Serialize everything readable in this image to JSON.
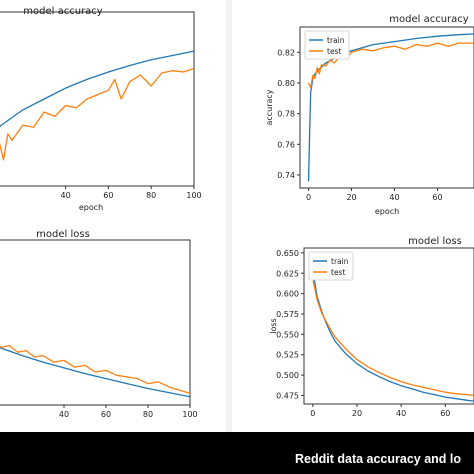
{
  "colors": {
    "train": "#1f77b4",
    "test": "#ff7f0e",
    "background": "#ffffff",
    "caption_bar": "#000000",
    "caption_text": "#ffffff"
  },
  "caption": "Reddit data accuracy and lo",
  "chart_data": [
    {
      "id": "left-accuracy",
      "type": "line",
      "title": "model accuracy",
      "xlabel": "epoch",
      "ylabel": "",
      "x_ticks": [
        40,
        60,
        80,
        100
      ],
      "y_ticks": [],
      "xlim": [
        0,
        100
      ],
      "ylim": [
        0.6,
        1.0
      ],
      "grid": false,
      "legend": null,
      "series": [
        {
          "key": "train",
          "color": "#1f77b4",
          "x": [
            0,
            5,
            10,
            20,
            30,
            40,
            50,
            60,
            70,
            80,
            90,
            100
          ],
          "values": [
            0.69,
            0.715,
            0.74,
            0.775,
            0.8,
            0.825,
            0.845,
            0.862,
            0.877,
            0.89,
            0.9,
            0.91
          ]
        },
        {
          "key": "test",
          "color": "#ff7f0e",
          "x": [
            0,
            3,
            5,
            7,
            9,
            11,
            13,
            15,
            20,
            25,
            30,
            35,
            40,
            45,
            50,
            55,
            60,
            63,
            66,
            70,
            75,
            80,
            85,
            90,
            95,
            100
          ],
          "values": [
            0.655,
            0.68,
            0.675,
            0.62,
            0.7,
            0.66,
            0.72,
            0.705,
            0.74,
            0.735,
            0.77,
            0.76,
            0.785,
            0.78,
            0.8,
            0.81,
            0.82,
            0.845,
            0.8,
            0.84,
            0.855,
            0.83,
            0.86,
            0.865,
            0.862,
            0.87
          ]
        }
      ]
    },
    {
      "id": "right-accuracy",
      "type": "line",
      "title": "model accuracy",
      "xlabel": "epoch",
      "ylabel": "accuracy",
      "x_ticks": [
        0,
        20,
        40,
        60
      ],
      "y_ticks": [
        0.74,
        0.76,
        0.78,
        0.8,
        0.82
      ],
      "xlim": [
        -4,
        77
      ],
      "ylim": [
        0.7315,
        0.8365
      ],
      "grid": false,
      "legend": "top-left",
      "series": [
        {
          "key": "train",
          "name": "train",
          "color": "#1f77b4",
          "x": [
            0,
            0.5,
            1,
            2,
            3,
            5,
            8,
            12,
            16,
            20,
            30,
            40,
            50,
            60,
            70,
            77
          ],
          "values": [
            0.736,
            0.77,
            0.794,
            0.803,
            0.806,
            0.809,
            0.813,
            0.816,
            0.819,
            0.821,
            0.825,
            0.827,
            0.829,
            0.8305,
            0.8315,
            0.832
          ]
        },
        {
          "key": "test",
          "name": "test",
          "color": "#ff7f0e",
          "x": [
            0,
            1,
            2,
            3,
            4,
            5,
            6,
            8,
            10,
            12,
            15,
            18,
            20,
            25,
            30,
            35,
            40,
            45,
            50,
            55,
            60,
            65,
            70,
            77
          ],
          "values": [
            0.8,
            0.797,
            0.805,
            0.803,
            0.81,
            0.806,
            0.812,
            0.811,
            0.815,
            0.813,
            0.818,
            0.817,
            0.82,
            0.822,
            0.821,
            0.823,
            0.824,
            0.822,
            0.825,
            0.824,
            0.826,
            0.824,
            0.826,
            0.826
          ]
        }
      ]
    },
    {
      "id": "left-loss",
      "type": "line",
      "title": "model loss",
      "xlabel": "",
      "ylabel": "",
      "x_ticks": [
        40,
        60,
        80,
        100
      ],
      "y_ticks": [],
      "xlim": [
        0,
        100
      ],
      "ylim": [
        0,
        1
      ],
      "grid": false,
      "legend": null,
      "series": [
        {
          "key": "train",
          "color": "#1f77b4",
          "x": [
            0,
            5,
            10,
            20,
            30,
            40,
            50,
            60,
            70,
            80,
            90,
            100
          ],
          "values": [
            0.4,
            0.37,
            0.345,
            0.3,
            0.26,
            0.225,
            0.19,
            0.16,
            0.13,
            0.1,
            0.075,
            0.05
          ]
        },
        {
          "key": "test",
          "color": "#ff7f0e",
          "x": [
            0,
            3,
            5,
            8,
            10,
            14,
            18,
            22,
            26,
            30,
            35,
            40,
            45,
            50,
            55,
            60,
            65,
            70,
            75,
            80,
            85,
            90,
            95,
            100
          ],
          "values": [
            0.38,
            0.43,
            0.44,
            0.37,
            0.35,
            0.36,
            0.32,
            0.33,
            0.29,
            0.3,
            0.26,
            0.27,
            0.23,
            0.24,
            0.2,
            0.21,
            0.18,
            0.17,
            0.16,
            0.13,
            0.14,
            0.11,
            0.09,
            0.07
          ]
        }
      ]
    },
    {
      "id": "right-loss",
      "type": "line",
      "title": "model loss",
      "xlabel": "",
      "ylabel": "loss",
      "x_ticks": [
        0,
        20,
        40,
        60
      ],
      "y_ticks": [
        0.475,
        0.5,
        0.525,
        0.55,
        0.575,
        0.6,
        0.625,
        0.65
      ],
      "xlim": [
        -4,
        73
      ],
      "ylim": [
        0.4645,
        0.656
      ],
      "grid": false,
      "legend": "top-left",
      "series": [
        {
          "key": "train",
          "name": "train",
          "color": "#1f77b4",
          "x": [
            0,
            2,
            4,
            6,
            8,
            10,
            15,
            20,
            25,
            30,
            35,
            40,
            45,
            50,
            55,
            60,
            65,
            70,
            73
          ],
          "values": [
            0.628,
            0.596,
            0.578,
            0.564,
            0.552,
            0.542,
            0.526,
            0.514,
            0.505,
            0.498,
            0.492,
            0.487,
            0.483,
            0.479,
            0.476,
            0.473,
            0.471,
            0.469,
            0.468
          ]
        },
        {
          "key": "test",
          "name": "test",
          "color": "#ff7f0e",
          "x": [
            0,
            2,
            4,
            6,
            8,
            10,
            12,
            15,
            18,
            20,
            25,
            30,
            35,
            40,
            45,
            50,
            55,
            60,
            65,
            70,
            73
          ],
          "values": [
            0.618,
            0.592,
            0.576,
            0.566,
            0.556,
            0.547,
            0.541,
            0.532,
            0.524,
            0.519,
            0.51,
            0.503,
            0.497,
            0.492,
            0.488,
            0.485,
            0.482,
            0.479,
            0.477,
            0.476,
            0.475
          ]
        }
      ]
    }
  ]
}
